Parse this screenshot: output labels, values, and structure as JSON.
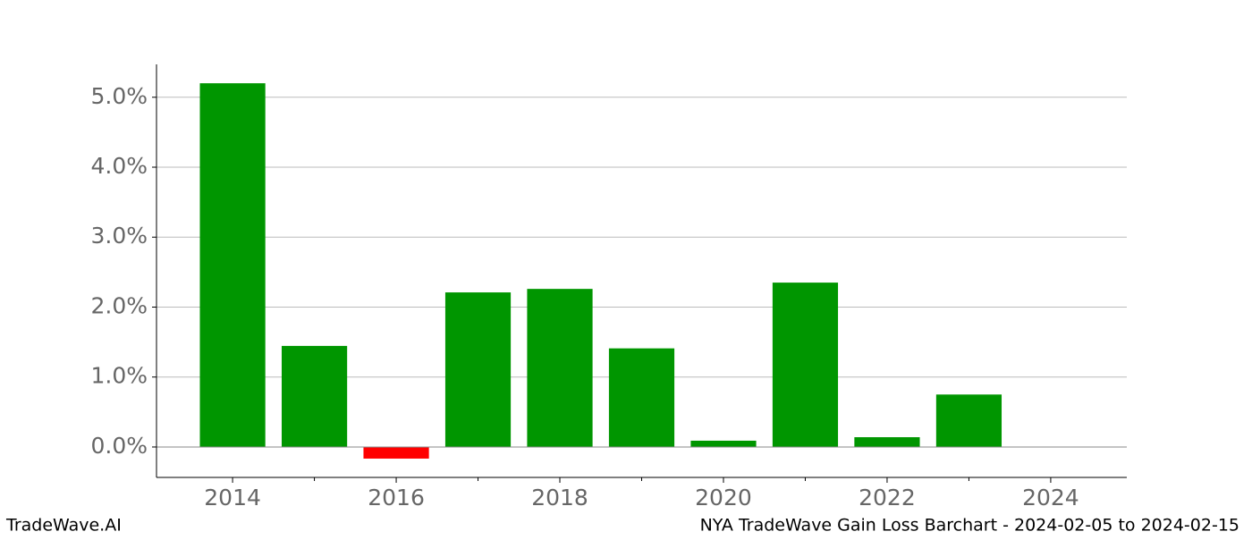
{
  "chart_data": {
    "type": "bar",
    "title": "NYA TradeWave Gain Loss Barchart - 2024-02-05 to 2024-02-15",
    "source": "TradeWave.AI",
    "x": [
      2014,
      2015,
      2016,
      2017,
      2018,
      2019,
      2020,
      2021,
      2022,
      2023
    ],
    "values": [
      5.2,
      1.445,
      -0.166,
      2.21,
      2.26,
      1.41,
      0.09,
      2.35,
      0.14,
      0.75
    ],
    "color": "#009600",
    "negative_color": "#ff0000",
    "xlim": [
      2013.07,
      2024.93
    ],
    "xticks": [
      2014,
      2016,
      2018,
      2020,
      2022,
      2024
    ],
    "xminorticks": [
      2015,
      2017,
      2019,
      2021,
      2023
    ],
    "ylim": [
      -0.435,
      5.47
    ],
    "yticks": [
      {
        "value": 0,
        "label": "0.0%"
      },
      {
        "value": 1,
        "label": "1.0%"
      },
      {
        "value": 2,
        "label": "2.0%"
      },
      {
        "value": 3,
        "label": "3.0%"
      },
      {
        "value": 4,
        "label": "4.0%"
      },
      {
        "value": 5,
        "label": "5.0%"
      }
    ],
    "grid": true
  }
}
